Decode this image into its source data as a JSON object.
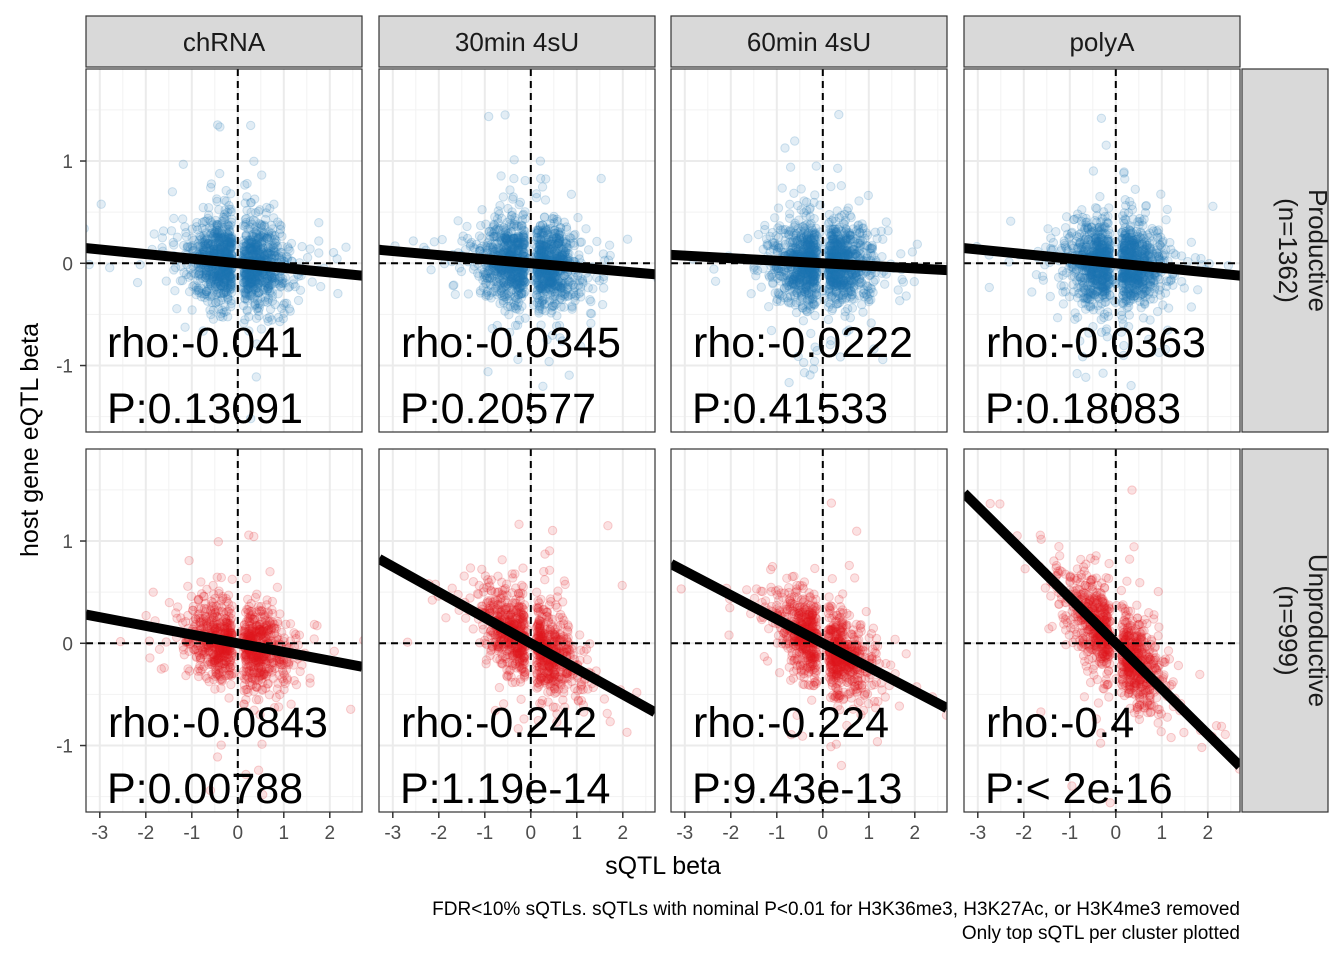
{
  "chart_data": {
    "type": "scatter",
    "facet_columns": [
      "chRNA",
      "30min 4sU",
      "60min 4sU",
      "polyA"
    ],
    "facet_rows": [
      {
        "label": "Productive\n(n=1362)",
        "color": "#1f77b4",
        "n_points": 1362
      },
      {
        "label": "Unproductive\n(n=999)",
        "color": "#e31a1c",
        "n_points": 999
      }
    ],
    "xlabel": "sQTL beta",
    "ylabel": "host gene eQTL beta",
    "xlim": [
      -3.3,
      2.7
    ],
    "ylim": [
      -1.65,
      1.9
    ],
    "x_ticks": [
      -3,
      -2,
      -1,
      0,
      1,
      2
    ],
    "y_ticks": [
      -1,
      0,
      1
    ],
    "reference_lines": {
      "x": 0,
      "y": 0,
      "style": "dashed"
    },
    "grid": true,
    "panels": [
      {
        "row": 0,
        "col": 0,
        "rho_label": "rho:-0.041",
        "p_label": "P:0.13091",
        "fit": {
          "intercept": 0.0,
          "slope": -0.045
        }
      },
      {
        "row": 0,
        "col": 1,
        "rho_label": "rho:-0.0345",
        "p_label": "P:0.20577",
        "fit": {
          "intercept": 0.0,
          "slope": -0.04
        }
      },
      {
        "row": 0,
        "col": 2,
        "rho_label": "rho:-0.0222",
        "p_label": "P:0.41533",
        "fit": {
          "intercept": 0.0,
          "slope": -0.025
        }
      },
      {
        "row": 0,
        "col": 3,
        "rho_label": "rho:-0.0363",
        "p_label": "P:0.18083",
        "fit": {
          "intercept": 0.0,
          "slope": -0.045
        }
      },
      {
        "row": 1,
        "col": 0,
        "rho_label": "rho:-0.0843",
        "p_label": "P:0.00788",
        "fit": {
          "intercept": 0.0,
          "slope": -0.085
        }
      },
      {
        "row": 1,
        "col": 1,
        "rho_label": "rho:-0.242",
        "p_label": "P:1.19e-14",
        "fit": {
          "intercept": 0.0,
          "slope": -0.25
        }
      },
      {
        "row": 1,
        "col": 2,
        "rho_label": "rho:-0.224",
        "p_label": "P:9.43e-13",
        "fit": {
          "intercept": 0.0,
          "slope": -0.235
        }
      },
      {
        "row": 1,
        "col": 3,
        "rho_label": "rho:-0.4",
        "p_label": "P:< 2e-16",
        "fit": {
          "intercept": 0.0,
          "slope": -0.445
        }
      }
    ],
    "caption": [
      "FDR<10% sQTLs. sQTLs with nominal P<0.01 for H3K36me3, H3K27Ac, or H3K4me3 removed",
      "Only top sQTL per cluster plotted"
    ]
  }
}
